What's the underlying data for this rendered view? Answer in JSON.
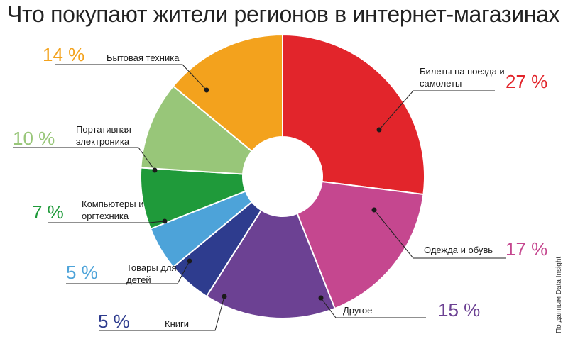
{
  "chart_data": {
    "type": "pie",
    "title": "Что покупают жители регионов в интернет-магазинах",
    "source": "По данным Data Insight",
    "unit": "%",
    "slices": [
      {
        "label": "Билеты на поезда и самолеты",
        "value": 27,
        "display": "27 %",
        "color": "#e2252b"
      },
      {
        "label": "Одежда и обувь",
        "value": 17,
        "display": "17 %",
        "color": "#c5478f"
      },
      {
        "label": "Другое",
        "value": 15,
        "display": "15 %",
        "color": "#6c4193"
      },
      {
        "label": "Книги",
        "value": 5,
        "display": "5 %",
        "color": "#2e3c8e"
      },
      {
        "label": "Товары для детей",
        "value": 5,
        "display": "5 %",
        "color": "#4da3d9"
      },
      {
        "label": "Компьютеры и оргтехника",
        "value": 7,
        "display": "7 %",
        "color": "#1f9a3a"
      },
      {
        "label": "Портативная электроника",
        "value": 10,
        "display": "10 %",
        "color": "#98c679"
      },
      {
        "label": "Бытовая техника",
        "value": 14,
        "display": "14 %",
        "color": "#f3a21d"
      }
    ]
  }
}
